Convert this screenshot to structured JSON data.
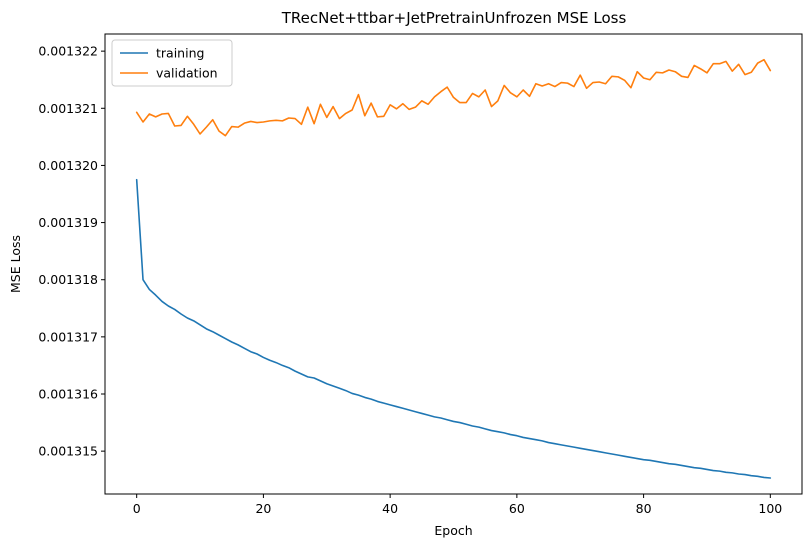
{
  "chart_data": {
    "type": "line",
    "title": "TRecNet+ttbar+JetPretrainUnfrozen MSE Loss",
    "xlabel": "Epoch",
    "ylabel": "MSE Loss",
    "xlim": [
      -5,
      105
    ],
    "ylim": [
      0.00131425,
      0.0013223
    ],
    "x_ticks": [
      0,
      20,
      40,
      60,
      80,
      100
    ],
    "y_ticks": [
      0.001315,
      0.001316,
      0.001317,
      0.001318,
      0.001319,
      0.00132,
      0.001321,
      0.001322
    ],
    "y_tick_labels": [
      "0.001315",
      "0.001316",
      "0.001317",
      "0.001318",
      "0.001319",
      "0.001320",
      "0.001321",
      "0.001322"
    ],
    "grid": false,
    "legend_position": "top-left",
    "x": [
      0,
      1,
      2,
      3,
      4,
      5,
      6,
      7,
      8,
      9,
      10,
      11,
      12,
      13,
      14,
      15,
      16,
      17,
      18,
      19,
      20,
      21,
      22,
      23,
      24,
      25,
      26,
      27,
      28,
      29,
      30,
      31,
      32,
      33,
      34,
      35,
      36,
      37,
      38,
      39,
      40,
      41,
      42,
      43,
      44,
      45,
      46,
      47,
      48,
      49,
      50,
      51,
      52,
      53,
      54,
      55,
      56,
      57,
      58,
      59,
      60,
      61,
      62,
      63,
      64,
      65,
      66,
      67,
      68,
      69,
      70,
      71,
      72,
      73,
      74,
      75,
      76,
      77,
      78,
      79,
      80,
      81,
      82,
      83,
      84,
      85,
      86,
      87,
      88,
      89,
      90,
      91,
      92,
      93,
      94,
      95,
      96,
      97,
      98,
      99,
      100
    ],
    "series": [
      {
        "name": "training",
        "color": "#1f77b4",
        "values": [
          0.00131975,
          0.001318,
          0.00131783,
          0.00131773,
          0.00131762,
          0.00131754,
          0.00131748,
          0.0013174,
          0.00131733,
          0.00131728,
          0.00131721,
          0.00131714,
          0.00131709,
          0.00131703,
          0.00131697,
          0.00131691,
          0.00131686,
          0.0013168,
          0.00131674,
          0.0013167,
          0.00131664,
          0.00131659,
          0.00131655,
          0.0013165,
          0.00131646,
          0.0013164,
          0.00131635,
          0.0013163,
          0.00131628,
          0.00131623,
          0.00131618,
          0.00131614,
          0.0013161,
          0.00131606,
          0.00131601,
          0.00131598,
          0.00131594,
          0.00131591,
          0.00131587,
          0.00131584,
          0.00131581,
          0.00131578,
          0.00131575,
          0.00131572,
          0.00131569,
          0.00131566,
          0.00131563,
          0.0013156,
          0.00131558,
          0.00131555,
          0.00131552,
          0.0013155,
          0.00131547,
          0.00131544,
          0.00131542,
          0.00131539,
          0.00131536,
          0.00131534,
          0.00131532,
          0.00131529,
          0.00131527,
          0.00131524,
          0.00131522,
          0.0013152,
          0.00131518,
          0.00131515,
          0.00131513,
          0.00131511,
          0.00131509,
          0.00131507,
          0.00131505,
          0.00131503,
          0.00131501,
          0.00131499,
          0.00131497,
          0.00131495,
          0.00131493,
          0.00131491,
          0.00131489,
          0.00131487,
          0.00131485,
          0.00131484,
          0.00131482,
          0.0013148,
          0.00131478,
          0.00131477,
          0.00131475,
          0.00131473,
          0.00131471,
          0.0013147,
          0.00131468,
          0.00131466,
          0.00131465,
          0.00131463,
          0.00131462,
          0.0013146,
          0.00131459,
          0.00131457,
          0.00131456,
          0.00131454,
          0.00131453
        ]
      },
      {
        "name": "validation",
        "color": "#ff7f0e",
        "values": [
          0.00132093,
          0.00132076,
          0.0013209,
          0.00132085,
          0.0013209,
          0.00132091,
          0.00132069,
          0.0013207,
          0.00132086,
          0.00132072,
          0.00132055,
          0.00132067,
          0.0013208,
          0.0013206,
          0.00132052,
          0.00132068,
          0.00132067,
          0.00132074,
          0.00132077,
          0.00132075,
          0.00132076,
          0.00132078,
          0.00132079,
          0.00132078,
          0.00132083,
          0.00132082,
          0.00132072,
          0.00132102,
          0.00132073,
          0.00132107,
          0.00132084,
          0.00132103,
          0.00132082,
          0.00132091,
          0.00132097,
          0.00132124,
          0.00132087,
          0.00132109,
          0.00132085,
          0.00132086,
          0.00132106,
          0.00132099,
          0.00132108,
          0.00132098,
          0.00132102,
          0.00132113,
          0.00132107,
          0.0013212,
          0.00132129,
          0.00132137,
          0.00132119,
          0.0013211,
          0.0013211,
          0.00132126,
          0.0013212,
          0.00132132,
          0.00132103,
          0.00132113,
          0.0013214,
          0.00132127,
          0.0013212,
          0.00132132,
          0.00132121,
          0.00132143,
          0.00132139,
          0.00132143,
          0.00132138,
          0.00132145,
          0.00132144,
          0.00132138,
          0.00132158,
          0.00132135,
          0.00132145,
          0.00132146,
          0.00132143,
          0.00132156,
          0.00132155,
          0.00132149,
          0.00132136,
          0.00132164,
          0.00132153,
          0.0013215,
          0.00132163,
          0.00132162,
          0.00132167,
          0.00132164,
          0.00132156,
          0.00132154,
          0.00132175,
          0.00132169,
          0.00132162,
          0.00132178,
          0.00132178,
          0.00132182,
          0.00132165,
          0.00132177,
          0.00132159,
          0.00132163,
          0.00132179,
          0.00132185,
          0.00132166
        ]
      }
    ]
  }
}
